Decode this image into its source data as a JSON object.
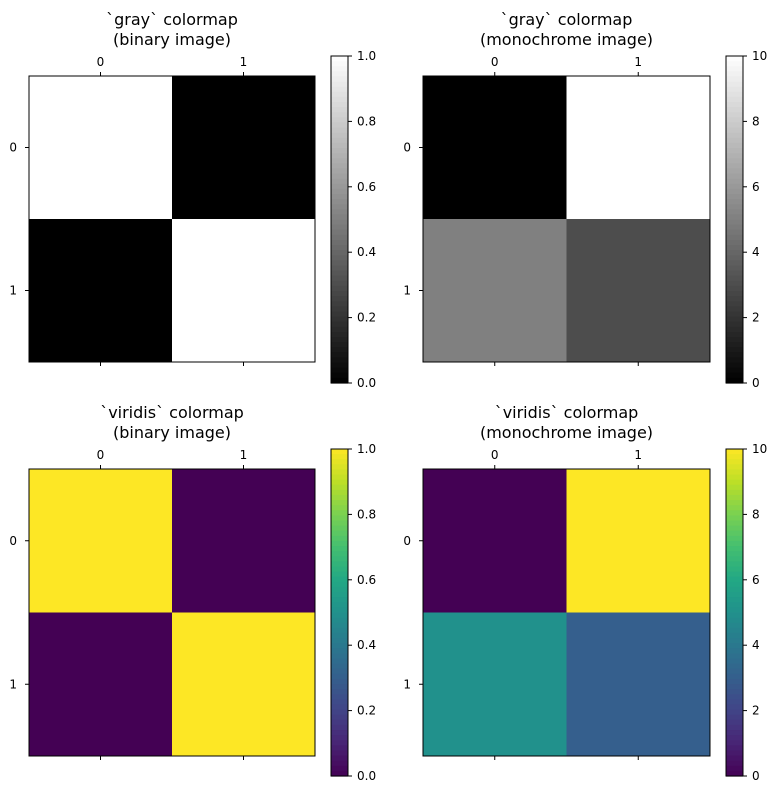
{
  "chart_data": [
    {
      "type": "heatmap",
      "title_line1": "`gray` colormap",
      "title_line2": "(binary image)",
      "colormap": "gray",
      "matrix": [
        [
          1,
          0
        ],
        [
          0,
          1
        ]
      ],
      "vmin": 0,
      "vmax": 1,
      "x_ticks": [
        "0",
        "1"
      ],
      "y_ticks": [
        "0",
        "1"
      ],
      "colorbar_ticks": [
        "0.0",
        "0.2",
        "0.4",
        "0.6",
        "0.8",
        "1.0"
      ],
      "colorbar_tick_values": [
        0,
        0.2,
        0.4,
        0.6,
        0.8,
        1.0
      ]
    },
    {
      "type": "heatmap",
      "title_line1": "`gray` colormap",
      "title_line2": "(monochrome image)",
      "colormap": "gray",
      "matrix": [
        [
          0,
          10
        ],
        [
          5,
          3
        ]
      ],
      "vmin": 0,
      "vmax": 10,
      "x_ticks": [
        "0",
        "1"
      ],
      "y_ticks": [
        "0",
        "1"
      ],
      "colorbar_ticks": [
        "0",
        "2",
        "4",
        "6",
        "8",
        "10"
      ],
      "colorbar_tick_values": [
        0,
        2,
        4,
        6,
        8,
        10
      ]
    },
    {
      "type": "heatmap",
      "title_line1": "`viridis` colormap",
      "title_line2": "(binary image)",
      "colormap": "viridis",
      "matrix": [
        [
          1,
          0
        ],
        [
          0,
          1
        ]
      ],
      "vmin": 0,
      "vmax": 1,
      "x_ticks": [
        "0",
        "1"
      ],
      "y_ticks": [
        "0",
        "1"
      ],
      "colorbar_ticks": [
        "0.0",
        "0.2",
        "0.4",
        "0.6",
        "0.8",
        "1.0"
      ],
      "colorbar_tick_values": [
        0,
        0.2,
        0.4,
        0.6,
        0.8,
        1.0
      ]
    },
    {
      "type": "heatmap",
      "title_line1": "`viridis` colormap",
      "title_line2": "(monochrome image)",
      "colormap": "viridis",
      "matrix": [
        [
          0,
          10
        ],
        [
          5,
          3
        ]
      ],
      "vmin": 0,
      "vmax": 10,
      "x_ticks": [
        "0",
        "1"
      ],
      "y_ticks": [
        "0",
        "1"
      ],
      "colorbar_ticks": [
        "0",
        "2",
        "4",
        "6",
        "8",
        "10"
      ],
      "colorbar_tick_values": [
        0,
        2,
        4,
        6,
        8,
        10
      ]
    }
  ]
}
